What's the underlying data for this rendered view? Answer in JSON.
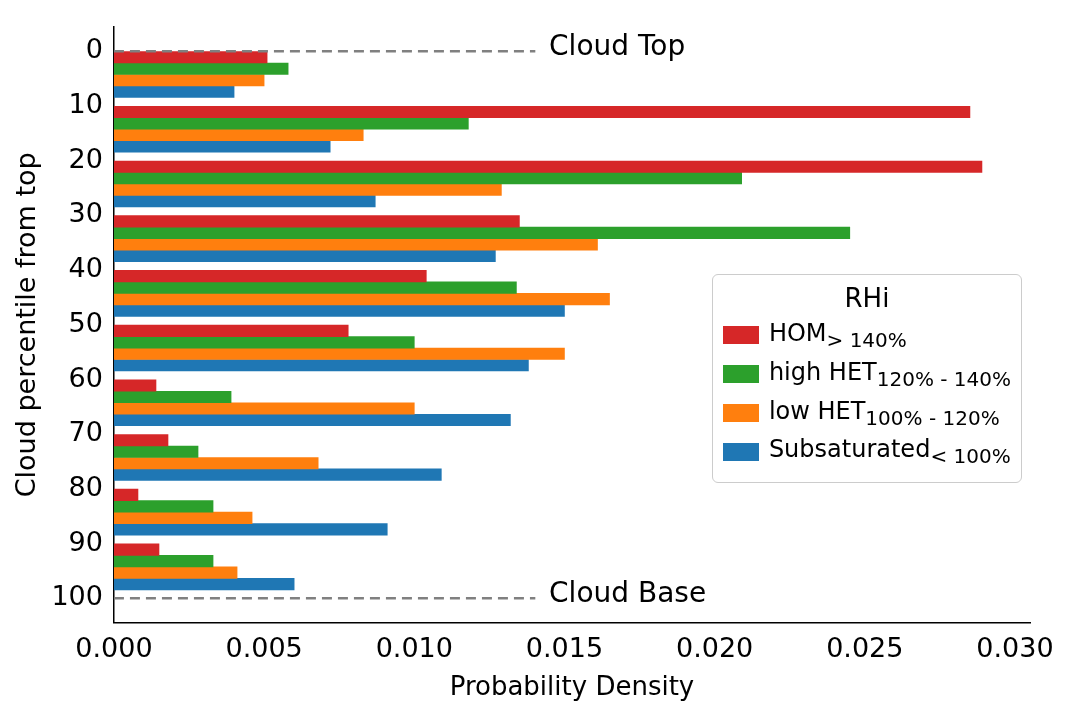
{
  "chart_data": {
    "type": "bar",
    "orientation": "horizontal",
    "xlabel": "Probability Density",
    "ylabel": "Cloud percentile from top",
    "legend_title": "RHi",
    "legend": "center right",
    "grid": false,
    "xlim": [
      0,
      0.0305
    ],
    "xticks": [
      {
        "value": 0,
        "label": "0.000"
      },
      {
        "value": 0.005,
        "label": "0.005"
      },
      {
        "value": 0.01,
        "label": "0.010"
      },
      {
        "value": 0.015,
        "label": "0.015"
      },
      {
        "value": 0.02,
        "label": "0.020"
      },
      {
        "value": 0.025,
        "label": "0.025"
      },
      {
        "value": 0.03,
        "label": "0.030"
      }
    ],
    "ylim": [
      104.4,
      -4.4
    ],
    "yticks": [
      0,
      10,
      20,
      30,
      40,
      50,
      60,
      70,
      80,
      90,
      100
    ],
    "series": [
      {
        "name": "HOM$_{> 140%}$",
        "color": "#d62728",
        "x": [
          1.1,
          11.1,
          21.1,
          31.1,
          41.1,
          51.1,
          61.1,
          71.1,
          81.1,
          91.1
        ],
        "values": [
          0.0051,
          0.0285,
          0.0289,
          0.0135,
          0.0104,
          0.0078,
          0.0014,
          0.0018,
          0.0008,
          0.0015
        ]
      },
      {
        "name": "high HET$_{120% - 140%}$",
        "color": "#2ca02c",
        "x": [
          3.2,
          13.2,
          23.2,
          33.2,
          43.2,
          53.2,
          63.2,
          73.2,
          83.2,
          93.2
        ],
        "values": [
          0.0058,
          0.0118,
          0.0209,
          0.0245,
          0.0134,
          0.01,
          0.0039,
          0.0028,
          0.0033,
          0.0033
        ]
      },
      {
        "name": "low HET$_{100% - 120%}$",
        "color": "#ff7f0e",
        "x": [
          5.3,
          15.3,
          25.3,
          35.3,
          45.3,
          55.3,
          65.3,
          75.3,
          85.3,
          95.3
        ],
        "values": [
          0.005,
          0.0083,
          0.0129,
          0.0161,
          0.0165,
          0.015,
          0.01,
          0.0068,
          0.0046,
          0.0041
        ]
      },
      {
        "name": "Subsaturated$_{< 100%}$",
        "color": "#1f77b4",
        "x": [
          7.4,
          17.4,
          27.4,
          37.4,
          47.4,
          57.4,
          67.4,
          77.4,
          87.4,
          97.4
        ],
        "values": [
          0.004,
          0.0072,
          0.0087,
          0.0127,
          0.015,
          0.0138,
          0.0132,
          0.0109,
          0.0091,
          0.006
        ]
      }
    ],
    "ref_lines": [
      {
        "axis": "y",
        "value": 0,
        "label": "Cloud Top",
        "color": "#808080",
        "line_style": "dashed"
      },
      {
        "axis": "y",
        "value": 100,
        "label": "Cloud Base",
        "color": "#808080",
        "line_style": "dashed"
      }
    ]
  }
}
